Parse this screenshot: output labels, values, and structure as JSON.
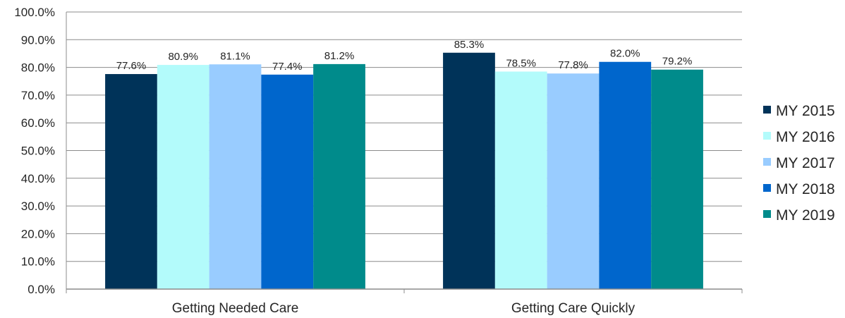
{
  "chart_data": {
    "type": "bar",
    "categories": [
      "Getting Needed Care",
      "Getting Care Quickly"
    ],
    "series": [
      {
        "name": "MY 2015",
        "color": "#003359",
        "values": [
          77.6,
          85.3
        ],
        "labels": [
          "77.6%",
          "85.3%"
        ]
      },
      {
        "name": "MY 2016",
        "color": "#b3fbfb",
        "values": [
          80.9,
          78.5
        ],
        "labels": [
          "80.9%",
          "78.5%"
        ]
      },
      {
        "name": "MY 2017",
        "color": "#99ccff",
        "values": [
          81.1,
          77.8
        ],
        "labels": [
          "81.1%",
          "77.8%"
        ]
      },
      {
        "name": "MY 2018",
        "color": "#0066cc",
        "values": [
          77.4,
          82.0
        ],
        "labels": [
          "77.4%",
          "82.0%"
        ]
      },
      {
        "name": "MY 2019",
        "color": "#008b8b",
        "values": [
          81.2,
          79.2
        ],
        "labels": [
          "81.2%",
          "79.2%"
        ]
      }
    ],
    "yticks": [
      "0.0%",
      "10.0%",
      "20.0%",
      "30.0%",
      "40.0%",
      "50.0%",
      "60.0%",
      "70.0%",
      "80.0%",
      "90.0%",
      "100.0%"
    ],
    "ylim": [
      0,
      100
    ],
    "grid": true,
    "legend_position": "right"
  }
}
